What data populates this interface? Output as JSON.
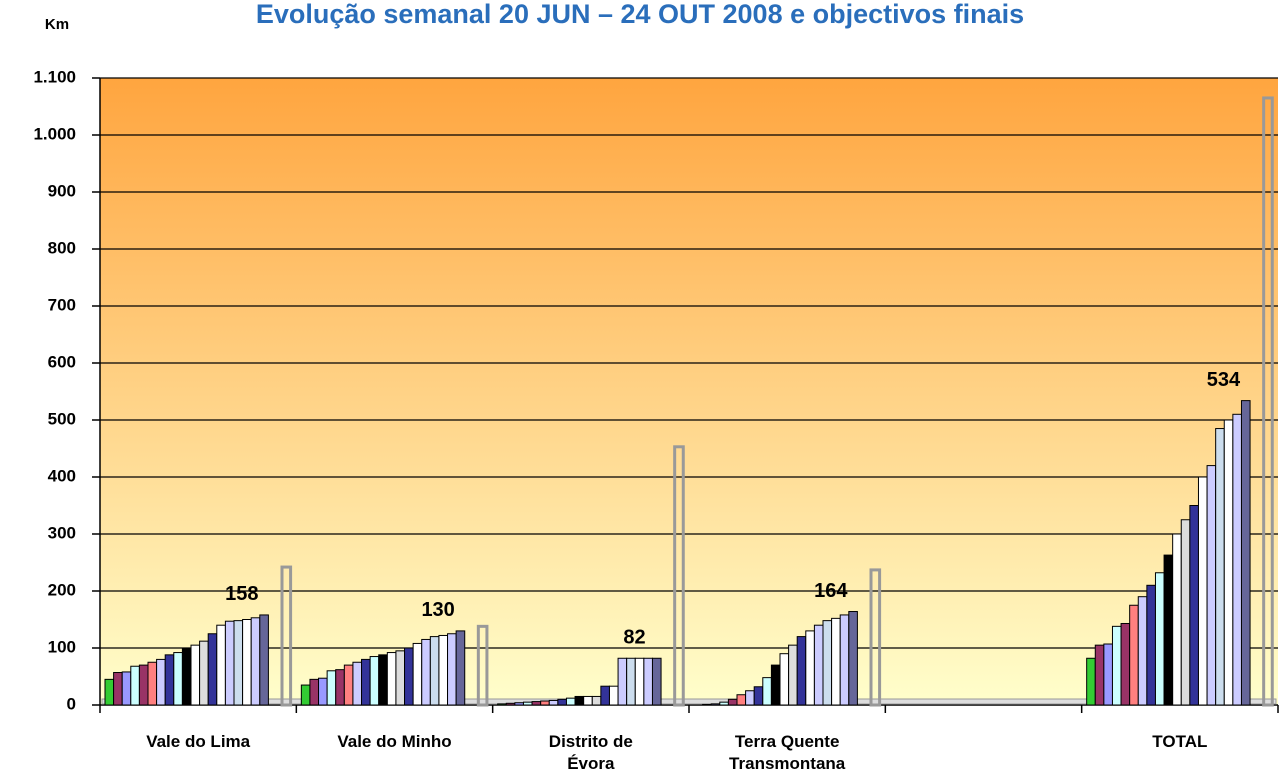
{
  "chart_data": {
    "type": "bar3d",
    "title": "Evolução semanal 20 JUN – 24 OUT  2008 e objectivos finais",
    "y_label": "Km",
    "categories": [
      "Vale do Lima",
      "Vale do Minho",
      "Distrito de Évora",
      "Terra Quente Transmontana",
      null,
      "TOTAL"
    ],
    "ylim": [
      0,
      1100
    ],
    "yticks": [
      0,
      100,
      200,
      300,
      400,
      500,
      600,
      700,
      800,
      900,
      {
        "value": 1000,
        "label": "1.000"
      },
      {
        "value": 1100,
        "label": "1.100"
      }
    ],
    "grid": true,
    "series": [
      {
        "color": "#33cc33",
        "values": [
          45,
          35,
          2,
          0,
          null,
          82
        ]
      },
      {
        "color": "#993366",
        "values": [
          57,
          45,
          3,
          1,
          null,
          105
        ]
      },
      {
        "color": "#9999ff",
        "values": [
          58,
          47,
          4,
          2,
          null,
          107
        ]
      },
      {
        "color": "#ccffff",
        "values": [
          68,
          60,
          5,
          5,
          null,
          138
        ]
      },
      {
        "color": "#993366",
        "values": [
          70,
          62,
          6,
          10,
          null,
          143
        ]
      },
      {
        "color": "#ff8080",
        "values": [
          75,
          70,
          7,
          18,
          null,
          175
        ]
      },
      {
        "color": "#ccccff",
        "values": [
          80,
          75,
          8,
          25,
          null,
          190
        ]
      },
      {
        "color": "#333399",
        "values": [
          88,
          80,
          10,
          32,
          null,
          210
        ]
      },
      {
        "color": "#ccffff",
        "values": [
          92,
          85,
          12,
          48,
          null,
          232
        ]
      },
      {
        "color": "#000000",
        "values": [
          100,
          88,
          15,
          70,
          null,
          263
        ]
      },
      {
        "color": "#ffffff",
        "values": [
          105,
          92,
          15,
          90,
          null,
          300
        ]
      },
      {
        "color": "#dddddd",
        "values": [
          112,
          95,
          15,
          105,
          null,
          325
        ]
      },
      {
        "color": "#333399",
        "values": [
          125,
          100,
          33,
          120,
          null,
          350
        ]
      },
      {
        "color": "#ffffff",
        "values": [
          140,
          108,
          33,
          130,
          null,
          400
        ]
      },
      {
        "color": "#ccccff",
        "values": [
          147,
          115,
          82,
          140,
          null,
          420
        ]
      },
      {
        "color": "#ccddee",
        "values": [
          148,
          120,
          82,
          148,
          null,
          485
        ]
      },
      {
        "color": "#ffffff",
        "values": [
          150,
          122,
          82,
          152,
          null,
          500
        ]
      },
      {
        "color": "#ccccff",
        "values": [
          153,
          125,
          82,
          158,
          null,
          510
        ]
      },
      {
        "color": "#666699",
        "values": [
          158,
          130,
          82,
          164,
          null,
          534
        ],
        "show_labels": true
      },
      {
        "color": "none",
        "outline": "#999999",
        "values": [
          242,
          138,
          453,
          237,
          null,
          1065
        ]
      }
    ]
  }
}
